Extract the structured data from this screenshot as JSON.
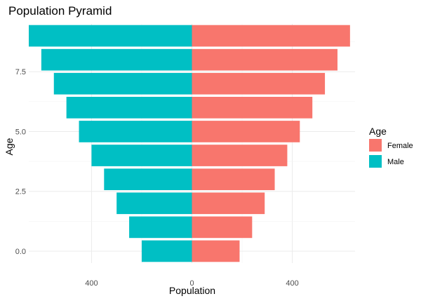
{
  "chart_data": {
    "type": "bar",
    "orientation": "horizontal",
    "title": "Population Pyramid",
    "xlabel": "Population",
    "ylabel": "Age",
    "legend_title": "Age",
    "legend_position": "right",
    "grid": true,
    "x_range": [
      -650,
      650
    ],
    "x_ticks": [
      -400,
      0,
      400
    ],
    "x_tick_labels": [
      "400",
      "0",
      "400"
    ],
    "y_range": [
      -0.5,
      9.5
    ],
    "y_ticks": [
      0,
      2.5,
      5,
      7.5
    ],
    "y_tick_labels": [
      "0.0",
      "2.5",
      "5.0",
      "7.5"
    ],
    "ages": [
      0,
      1,
      2,
      3,
      4,
      5,
      6,
      7,
      8,
      9
    ],
    "series": [
      {
        "name": "Female",
        "color": "#F8766D",
        "values": [
          190,
          240,
          290,
          330,
          380,
          430,
          480,
          530,
          580,
          630
        ]
      },
      {
        "name": "Male",
        "color": "#00BFC4",
        "values": [
          -200,
          -250,
          -300,
          -350,
          -400,
          -450,
          -500,
          -550,
          -600,
          -650
        ]
      }
    ]
  }
}
